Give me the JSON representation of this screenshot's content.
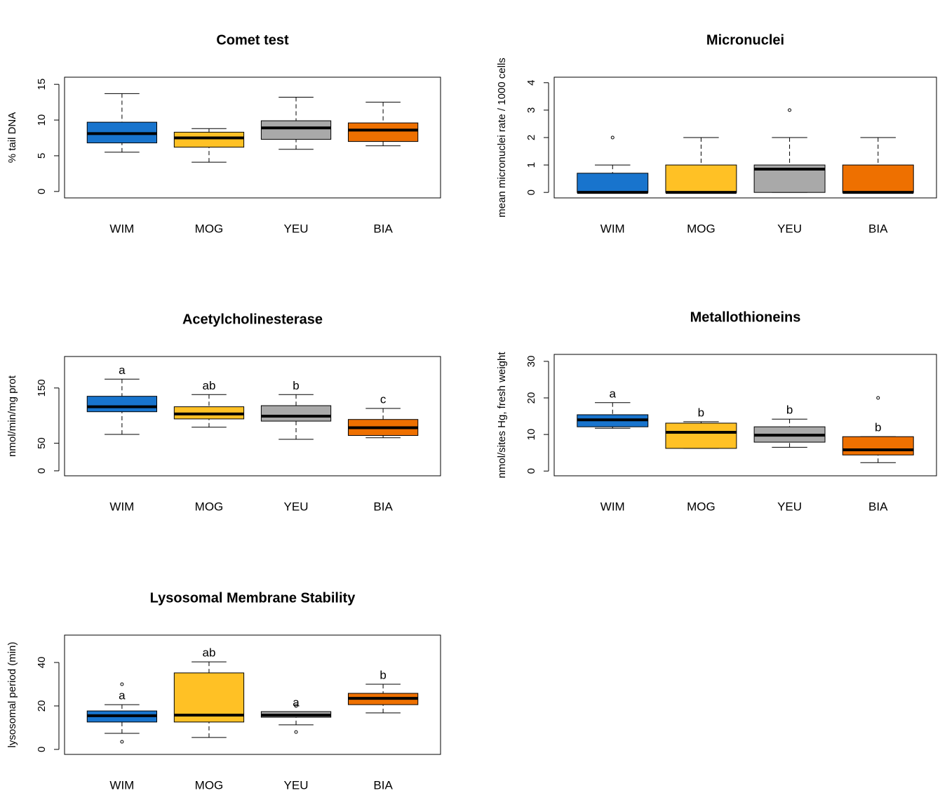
{
  "chart_data": [
    {
      "type": "box",
      "title": "Comet test",
      "ylabel": "% tail DNA",
      "categories": [
        "WIM",
        "MOG",
        "YEU",
        "BIA"
      ],
      "colors": [
        "#1874cd",
        "#ffc125",
        "#a9a9a9",
        "#ee7000"
      ],
      "stats": [
        {
          "low": 5.5,
          "q1": 6.8,
          "median": 8.1,
          "q3": 9.7,
          "high": 13.7,
          "outliers": []
        },
        {
          "low": 4.1,
          "q1": 6.2,
          "median": 7.5,
          "q3": 8.3,
          "high": 8.8,
          "outliers": []
        },
        {
          "low": 5.9,
          "q1": 7.3,
          "median": 8.9,
          "q3": 9.9,
          "high": 13.2,
          "outliers": []
        },
        {
          "low": 6.4,
          "q1": 7.0,
          "median": 8.6,
          "q3": 9.6,
          "high": 12.5,
          "outliers": []
        }
      ],
      "ylim": [
        -0.9,
        16
      ],
      "yticks": [
        0,
        5,
        10,
        15
      ]
    },
    {
      "type": "box",
      "title": "Micronuclei",
      "ylabel": "mean micronuclei rate / 1000 cells",
      "categories": [
        "WIM",
        "MOG",
        "YEU",
        "BIA"
      ],
      "colors": [
        "#1874cd",
        "#ffc125",
        "#a9a9a9",
        "#ee7000"
      ],
      "stats": [
        {
          "low": 0,
          "q1": 0,
          "median": 0,
          "q3": 0.7,
          "high": 1,
          "outliers": [
            2
          ]
        },
        {
          "low": 0,
          "q1": 0,
          "median": 0,
          "q3": 1,
          "high": 2,
          "outliers": []
        },
        {
          "low": 0,
          "q1": 0,
          "median": 0.85,
          "q3": 1,
          "high": 2,
          "outliers": [
            3
          ]
        },
        {
          "low": 0,
          "q1": 0,
          "median": 0,
          "q3": 1,
          "high": 2,
          "outliers": []
        }
      ],
      "ylim": [
        -0.2,
        4.2
      ],
      "yticks": [
        0,
        1,
        2,
        3,
        4
      ]
    },
    {
      "type": "box",
      "title": "Acetylcholinesterase",
      "ylabel": "nmol/min/mg prot",
      "categories": [
        "WIM",
        "MOG",
        "YEU",
        "BIA"
      ],
      "colors": [
        "#1874cd",
        "#ffc125",
        "#a9a9a9",
        "#ee7000"
      ],
      "stats": [
        {
          "low": 66,
          "q1": 107,
          "median": 116,
          "q3": 135,
          "high": 166,
          "outliers": []
        },
        {
          "low": 79,
          "q1": 94,
          "median": 103,
          "q3": 116,
          "high": 138,
          "outliers": []
        },
        {
          "low": 57,
          "q1": 90,
          "median": 99,
          "q3": 118,
          "high": 138,
          "outliers": []
        },
        {
          "low": 60,
          "q1": 64,
          "median": 78,
          "q3": 93,
          "high": 113,
          "outliers": []
        }
      ],
      "letters": [
        "a",
        "ab",
        "b",
        "c"
      ],
      "ylim": [
        -9,
        207
      ],
      "yticks": [
        0,
        50,
        150
      ]
    },
    {
      "type": "box",
      "title": "Metallothioneins",
      "ylabel": "nmol/sites Hg, fresh weight",
      "categories": [
        "WIM",
        "MOG",
        "YEU",
        "BIA"
      ],
      "colors": [
        "#1874cd",
        "#ffc125",
        "#a9a9a9",
        "#ee7000"
      ],
      "stats": [
        {
          "low": 11.7,
          "q1": 12.1,
          "median": 14.0,
          "q3": 15.4,
          "high": 18.7,
          "outliers": []
        },
        {
          "low": 6.2,
          "q1": 6.2,
          "median": 10.6,
          "q3": 13.1,
          "high": 13.5,
          "outliers": []
        },
        {
          "low": 6.5,
          "q1": 7.9,
          "median": 9.8,
          "q3": 12.1,
          "high": 14.2,
          "outliers": []
        },
        {
          "low": 2.3,
          "q1": 4.4,
          "median": 5.8,
          "q3": 9.4,
          "high": 9.4,
          "outliers": [
            20
          ]
        }
      ],
      "letters": [
        "a",
        "b",
        "b",
        "b"
      ],
      "ylim": [
        -1.3,
        31.9
      ],
      "yticks": [
        0,
        10,
        20,
        30
      ]
    },
    {
      "type": "box",
      "title": "Lysosomal Membrane Stability",
      "ylabel": "lysosomal period (min)",
      "categories": [
        "WIM",
        "MOG",
        "YEU",
        "BIA"
      ],
      "colors": [
        "#1874cd",
        "#ffc125",
        "#a9a9a9",
        "#ee7000"
      ],
      "stats": [
        {
          "low": 7.4,
          "q1": 12.6,
          "median": 15.5,
          "q3": 17.7,
          "high": 20.6,
          "outliers": [
            30,
            3.5
          ]
        },
        {
          "low": 5.5,
          "q1": 12.6,
          "median": 15.8,
          "q3": 35.2,
          "high": 40.3,
          "outliers": []
        },
        {
          "low": 11.3,
          "q1": 14.8,
          "median": 15.8,
          "q3": 17.4,
          "high": 17.4,
          "outliers": [
            20,
            8
          ]
        },
        {
          "low": 16.8,
          "q1": 20.6,
          "median": 23.5,
          "q3": 25.8,
          "high": 30,
          "outliers": []
        }
      ],
      "letters": [
        "a",
        "ab",
        "a",
        "b"
      ],
      "ylim": [
        -2.3,
        52.6
      ],
      "yticks": [
        0,
        20,
        40
      ]
    }
  ]
}
